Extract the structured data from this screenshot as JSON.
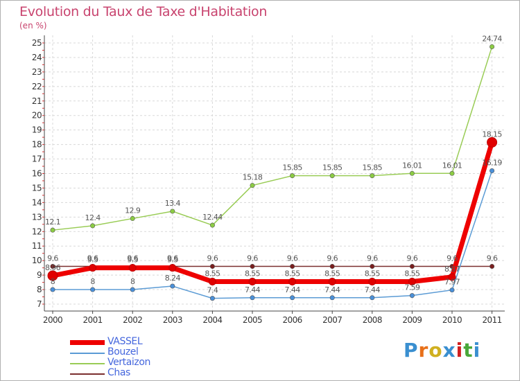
{
  "chart_data": {
    "type": "line",
    "title": "Evolution du Taux de Taxe d'Habitation",
    "subtitle": "(en %)",
    "x": [
      "2000",
      "2001",
      "2002",
      "2003",
      "2004",
      "2005",
      "2006",
      "2007",
      "2008",
      "2009",
      "2010",
      "2011"
    ],
    "ylim": [
      7,
      25
    ],
    "yticks": [
      7,
      8,
      9,
      10,
      11,
      12,
      13,
      14,
      15,
      16,
      17,
      18,
      19,
      20,
      21,
      22,
      23,
      24,
      25
    ],
    "grid": true,
    "legend_position": "bottom-left",
    "series": [
      {
        "name": "VASSEL",
        "color": "#ee0000",
        "values": [
          8.96,
          9.5,
          9.5,
          9.5,
          8.55,
          8.55,
          8.55,
          8.55,
          8.55,
          8.55,
          8.87,
          18.15
        ],
        "labels": [
          "8.96",
          "9.5",
          "9.5",
          "9.5",
          "8.55",
          "8.55",
          "8.55",
          "8.55",
          "8.55",
          "8.55",
          "8.87",
          "18.15"
        ]
      },
      {
        "name": "Bouzel",
        "color": "#5b9bd5",
        "values": [
          8,
          8,
          8,
          8.24,
          7.4,
          7.44,
          7.44,
          7.44,
          7.44,
          7.59,
          7.97,
          16.19
        ],
        "labels": [
          "8",
          "8",
          "8",
          "8.24",
          "7.4",
          "7.44",
          "7.44",
          "7.44",
          "7.44",
          "7.59",
          "7.97",
          "16.19"
        ]
      },
      {
        "name": "Vertaizon",
        "color": "#99cc55",
        "values": [
          12.1,
          12.4,
          12.9,
          13.4,
          12.44,
          15.18,
          15.85,
          15.85,
          15.85,
          16.01,
          16.01,
          24.74
        ],
        "labels": [
          "12.1",
          "12.4",
          "12.9",
          "13.4",
          "12.44",
          "15.18",
          "15.85",
          "15.85",
          "15.85",
          "16.01",
          "16.01",
          "24.74"
        ]
      },
      {
        "name": "Chas",
        "color": "#7a2e2e",
        "values": [
          9.6,
          9.6,
          9.6,
          9.6,
          9.6,
          9.6,
          9.6,
          9.6,
          9.6,
          9.6,
          9.6,
          9.6
        ],
        "labels": [
          "9.6",
          "9.6",
          "9.6",
          "9.6",
          "9.6",
          "9.6",
          "9.6",
          "9.6",
          "9.6",
          "9.6",
          "9.6",
          "9.6"
        ]
      }
    ]
  },
  "logo": {
    "text": "Proxiti",
    "colors": [
      "#3a8fd0",
      "#e8701a",
      "#d0b020",
      "#3a8fd0",
      "#d02020",
      "#49a83a",
      "#3a8fd0"
    ]
  }
}
